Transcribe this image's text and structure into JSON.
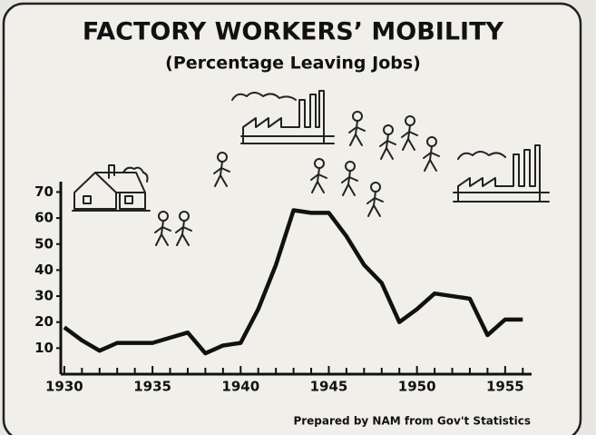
{
  "chart_data": {
    "type": "line",
    "title": "FACTORY WORKERS’ MOBILITY",
    "subtitle": "(Percentage Leaving Jobs)",
    "source": "Prepared by NAM from Gov't Statistics",
    "x": [
      1930,
      1931,
      1932,
      1933,
      1934,
      1935,
      1936,
      1937,
      1938,
      1939,
      1940,
      1941,
      1942,
      1943,
      1944,
      1945,
      1946,
      1947,
      1948,
      1949,
      1950,
      1951,
      1952,
      1953,
      1954,
      1955,
      1956
    ],
    "values": [
      18,
      13,
      9,
      12,
      12,
      12,
      14,
      16,
      8,
      11,
      12,
      25,
      42,
      63,
      62,
      62,
      53,
      42,
      35,
      20,
      25,
      31,
      30,
      29,
      15,
      21,
      21
    ],
    "color": "#111111",
    "xlim": [
      1929.8,
      1956.5
    ],
    "xticks": [
      1930,
      1935,
      1940,
      1945,
      1950,
      1955
    ],
    "xticks_minor": [
      1931,
      1932,
      1933,
      1934,
      1936,
      1937,
      1938,
      1939,
      1941,
      1942,
      1943,
      1944,
      1946,
      1947,
      1948,
      1949,
      1951,
      1952,
      1953,
      1954,
      1956
    ],
    "ylim": [
      0,
      74
    ],
    "yticks": [
      10,
      20,
      30,
      40,
      50,
      60,
      70
    ],
    "grid": false
  }
}
